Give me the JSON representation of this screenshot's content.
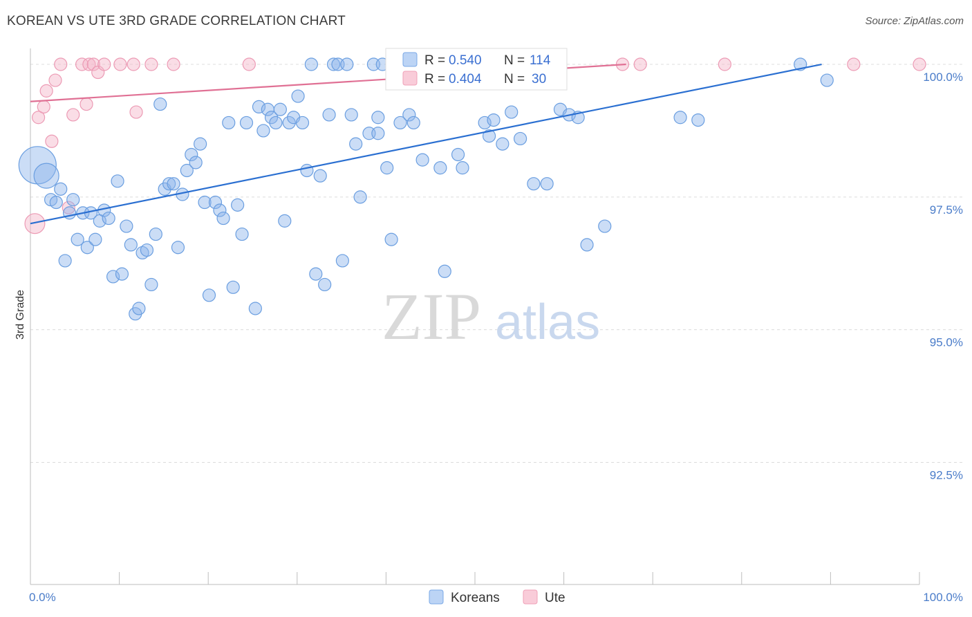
{
  "title": "KOREAN VS UTE 3RD GRADE CORRELATION CHART",
  "source": "Source: ZipAtlas.com",
  "colors": {
    "korean": "#7aa8e6",
    "korean_line": "#2a6fd1",
    "ute": "#f0a0b8",
    "ute_line": "#e07094",
    "axis_text": "#4a7cc9"
  },
  "chart_data": {
    "type": "scatter",
    "xlabel": "",
    "ylabel": "3rd Grade",
    "xlim": [
      0,
      100
    ],
    "ylim": [
      90.2,
      100.3
    ],
    "x_tick_labels": [
      "0.0%",
      "100.0%"
    ],
    "y_ticks": [
      92.5,
      95.0,
      97.5,
      100.0
    ],
    "y_tick_labels": [
      "92.5%",
      "95.0%",
      "97.5%",
      "100.0%"
    ],
    "legend": {
      "korean": {
        "r_label": "R =",
        "r": "0.540",
        "n_label": "N =",
        "n": "114"
      },
      "ute": {
        "r_label": "R =",
        "r": "0.404",
        "n_label": "N =",
        "n": "30"
      }
    },
    "series": [
      {
        "name": "Koreans",
        "trend": {
          "x0": 0,
          "y0": 97.0,
          "x1": 89,
          "y1": 100.0
        },
        "points": [
          [
            0.8,
            98.1,
            3
          ],
          [
            1.8,
            97.9,
            2
          ],
          [
            2.3,
            97.45,
            1
          ],
          [
            2.9,
            97.4,
            1
          ],
          [
            3.4,
            97.65,
            1
          ],
          [
            3.9,
            96.3,
            1
          ],
          [
            4.4,
            97.2,
            1
          ],
          [
            4.8,
            97.45,
            1
          ],
          [
            5.3,
            96.7,
            1
          ],
          [
            5.9,
            97.2,
            1
          ],
          [
            6.4,
            96.55,
            1
          ],
          [
            6.8,
            97.2,
            1
          ],
          [
            7.3,
            96.7,
            1
          ],
          [
            7.8,
            97.05,
            1
          ],
          [
            8.3,
            97.25,
            1
          ],
          [
            8.8,
            97.1,
            1
          ],
          [
            9.3,
            96.0,
            1
          ],
          [
            9.8,
            97.8,
            1
          ],
          [
            10.3,
            96.05,
            1
          ],
          [
            10.8,
            96.95,
            1
          ],
          [
            11.3,
            96.6,
            1
          ],
          [
            11.8,
            95.3,
            1
          ],
          [
            12.2,
            95.4,
            1
          ],
          [
            12.6,
            96.45,
            1
          ],
          [
            13.1,
            96.5,
            1
          ],
          [
            13.6,
            95.85,
            1
          ],
          [
            14.1,
            96.8,
            1
          ],
          [
            14.6,
            99.25,
            1
          ],
          [
            15.1,
            97.65,
            1
          ],
          [
            15.6,
            97.75,
            1
          ],
          [
            16.1,
            97.75,
            1
          ],
          [
            16.6,
            96.55,
            1
          ],
          [
            17.1,
            97.55,
            1
          ],
          [
            17.6,
            98.0,
            1
          ],
          [
            18.1,
            98.3,
            1
          ],
          [
            18.6,
            98.15,
            1
          ],
          [
            19.1,
            98.5,
            1
          ],
          [
            19.6,
            97.4,
            1
          ],
          [
            20.1,
            95.65,
            1
          ],
          [
            20.8,
            97.4,
            1
          ],
          [
            21.3,
            97.25,
            1
          ],
          [
            21.7,
            97.1,
            1
          ],
          [
            22.3,
            98.9,
            1
          ],
          [
            22.8,
            95.8,
            1
          ],
          [
            23.3,
            97.35,
            1
          ],
          [
            23.8,
            96.8,
            1
          ],
          [
            24.3,
            98.9,
            1
          ],
          [
            25.3,
            95.4,
            1
          ],
          [
            25.7,
            99.2,
            1
          ],
          [
            26.2,
            98.75,
            1
          ],
          [
            26.7,
            99.15,
            1
          ],
          [
            27.1,
            99.0,
            1
          ],
          [
            27.6,
            98.9,
            1
          ],
          [
            28.1,
            99.15,
            1
          ],
          [
            28.6,
            97.05,
            1
          ],
          [
            29.1,
            98.9,
            1
          ],
          [
            29.6,
            99.0,
            1
          ],
          [
            30.1,
            99.4,
            1
          ],
          [
            30.6,
            98.9,
            1
          ],
          [
            31.1,
            98.0,
            1
          ],
          [
            31.6,
            100.0,
            1
          ],
          [
            32.1,
            96.05,
            1
          ],
          [
            32.6,
            97.9,
            1
          ],
          [
            33.1,
            95.85,
            1
          ],
          [
            33.6,
            99.05,
            1
          ],
          [
            34.1,
            100.0,
            1
          ],
          [
            34.6,
            100.0,
            1
          ],
          [
            35.1,
            96.3,
            1
          ],
          [
            35.6,
            100.0,
            1
          ],
          [
            36.1,
            99.05,
            1
          ],
          [
            36.6,
            98.5,
            1
          ],
          [
            37.1,
            97.5,
            1
          ],
          [
            38.1,
            98.7,
            1
          ],
          [
            38.6,
            100.0,
            1
          ],
          [
            39.1,
            98.7,
            1
          ],
          [
            39.1,
            99.0,
            1
          ],
          [
            39.6,
            100.0,
            1
          ],
          [
            40.1,
            98.05,
            1
          ],
          [
            40.6,
            96.7,
            1
          ],
          [
            41.1,
            100.0,
            1
          ],
          [
            41.6,
            98.9,
            1
          ],
          [
            42.1,
            100.0,
            1
          ],
          [
            42.6,
            99.05,
            1
          ],
          [
            43.1,
            98.9,
            1
          ],
          [
            43.6,
            100.0,
            1
          ],
          [
            44.1,
            98.2,
            1
          ],
          [
            45.1,
            100.0,
            1
          ],
          [
            46.1,
            98.05,
            1
          ],
          [
            46.6,
            96.1,
            1
          ],
          [
            47.1,
            100.0,
            1
          ],
          [
            48.1,
            98.3,
            1
          ],
          [
            48.6,
            98.05,
            1
          ],
          [
            49.1,
            100.0,
            1
          ],
          [
            50.1,
            100.0,
            1
          ],
          [
            51.1,
            98.9,
            1
          ],
          [
            51.6,
            98.65,
            1
          ],
          [
            52.1,
            98.95,
            1
          ],
          [
            52.6,
            100.0,
            1
          ],
          [
            53.1,
            98.5,
            1
          ],
          [
            54.1,
            99.1,
            1
          ],
          [
            55.1,
            98.6,
            1
          ],
          [
            56.1,
            100.0,
            1
          ],
          [
            56.6,
            97.75,
            1
          ],
          [
            57.1,
            100.0,
            1
          ],
          [
            58.1,
            97.75,
            1
          ],
          [
            58.6,
            100.0,
            1
          ],
          [
            59.6,
            99.15,
            1
          ],
          [
            60.6,
            99.05,
            1
          ],
          [
            61.6,
            99.0,
            1
          ],
          [
            62.6,
            96.6,
            1
          ],
          [
            64.6,
            96.95,
            1
          ],
          [
            73.1,
            99.0,
            1
          ],
          [
            75.1,
            98.95,
            1
          ],
          [
            86.6,
            100.0,
            1
          ],
          [
            89.6,
            99.7,
            1
          ]
        ]
      },
      {
        "name": "Ute",
        "trend": {
          "x0": 0,
          "y0": 99.3,
          "x1": 67,
          "y1": 100.0
        },
        "points": [
          [
            0.5,
            97.0,
            1.6
          ],
          [
            0.9,
            99.0,
            1
          ],
          [
            1.5,
            99.2,
            1
          ],
          [
            1.8,
            99.5,
            1
          ],
          [
            2.4,
            98.55,
            1
          ],
          [
            2.8,
            99.7,
            1
          ],
          [
            4.3,
            97.3,
            1
          ],
          [
            3.4,
            100.0,
            1
          ],
          [
            4.8,
            99.05,
            1
          ],
          [
            5.8,
            100.0,
            1
          ],
          [
            6.3,
            99.25,
            1
          ],
          [
            6.6,
            100.0,
            1
          ],
          [
            7.1,
            100.0,
            1
          ],
          [
            7.6,
            99.85,
            1
          ],
          [
            8.3,
            100.0,
            1
          ],
          [
            10.1,
            100.0,
            1
          ],
          [
            11.6,
            100.0,
            1
          ],
          [
            11.9,
            99.1,
            1
          ],
          [
            13.6,
            100.0,
            1
          ],
          [
            16.1,
            100.0,
            1
          ],
          [
            24.6,
            100.0,
            1
          ],
          [
            41.1,
            100.0,
            1
          ],
          [
            44.1,
            100.0,
            1
          ],
          [
            46.6,
            100.0,
            1
          ],
          [
            51.1,
            100.0,
            1
          ],
          [
            53.6,
            100.0,
            1
          ],
          [
            66.6,
            100.0,
            1
          ],
          [
            68.6,
            100.0,
            1
          ],
          [
            78.1,
            100.0,
            1
          ],
          [
            92.6,
            100.0,
            1
          ],
          [
            100.0,
            100.0,
            1
          ]
        ]
      }
    ]
  },
  "bottom_legend": {
    "korean_label": "Koreans",
    "ute_label": "Ute"
  },
  "watermark": {
    "zip": "ZIP",
    "atlas": "atlas"
  }
}
